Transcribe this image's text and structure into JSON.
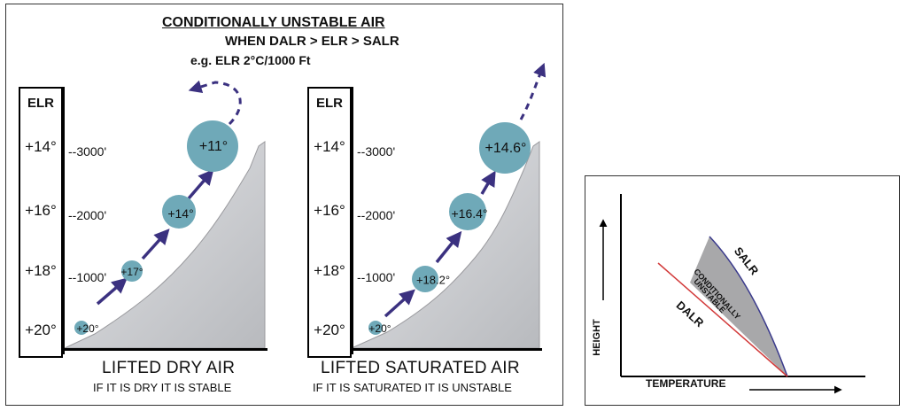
{
  "left": {
    "title": "CONDITIONALLY UNSTABLE AIR",
    "condition": "WHEN DALR > ELR > SALR",
    "example": "e.g. ELR 2°C/1000 Ft",
    "elr_header": "ELR",
    "elr_values": [
      "+14°",
      "+16°",
      "+18°",
      "+20°"
    ],
    "altitudes": [
      "--3000'",
      "--2000'",
      "--1000'"
    ],
    "dry": {
      "parcels": [
        "+20°",
        "+17°",
        "+14°",
        "+11°"
      ],
      "caption": "LIFTED DRY AIR",
      "subcaption": "IF IT IS DRY IT IS STABLE"
    },
    "saturated": {
      "parcels": [
        "+20°",
        "+18.2°",
        "+16.4°",
        "+14.6°"
      ],
      "caption": "LIFTED SATURATED AIR",
      "subcaption": "IF IT IS SATURATED IT IS UNSTABLE"
    },
    "colors": {
      "parcel": "#6fa9b8",
      "arrow": "#3b3180",
      "terrain": "#c8c9cc"
    }
  },
  "right": {
    "x_label": "TEMPERATURE",
    "y_label": "HEIGHT",
    "salr_label": "SALR",
    "dalr_label": "DALR",
    "zone_label_1": "CONDITIONALLY",
    "zone_label_2": "UNSTABLE",
    "colors": {
      "salr": "#3a3a8c",
      "dalr": "#d23a3a",
      "zone": "#a8a8aa"
    }
  }
}
